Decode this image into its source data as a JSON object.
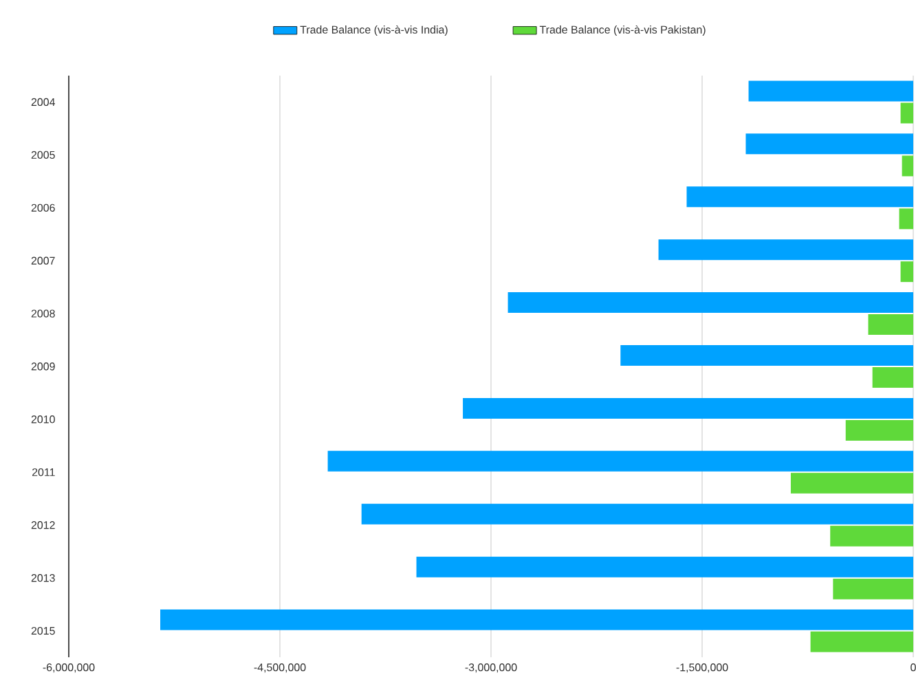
{
  "chart_data": {
    "type": "bar",
    "orientation": "horizontal",
    "categories": [
      "2004",
      "2005",
      "2006",
      "2007",
      "2008",
      "2009",
      "2010",
      "2011",
      "2012",
      "2013",
      "2015"
    ],
    "series": [
      {
        "name": "Trade Balance (vis-à-vis India)",
        "color": "#00a2ff",
        "values": [
          -1170000,
          -1190000,
          -1610000,
          -1810000,
          -2880000,
          -2080000,
          -3200000,
          -4160000,
          -3920000,
          -3530000,
          -5350000
        ]
      },
      {
        "name": "Trade Balance (vis-à-vis Pakistan)",
        "color": "#5fd93a",
        "values": [
          -90000,
          -80000,
          -100000,
          -90000,
          -320000,
          -290000,
          -480000,
          -870000,
          -590000,
          -570000,
          -730000
        ]
      }
    ],
    "xlim": [
      -6000000,
      0
    ],
    "xticks": [
      {
        "value": -6000000,
        "label": "-6,000,000"
      },
      {
        "value": -4500000,
        "label": "-4,500,000"
      },
      {
        "value": -3000000,
        "label": "-3,000,000"
      },
      {
        "value": -1500000,
        "label": "-1,500,000"
      },
      {
        "value": 0,
        "label": "0"
      }
    ],
    "grid": "x",
    "legend": "top"
  }
}
